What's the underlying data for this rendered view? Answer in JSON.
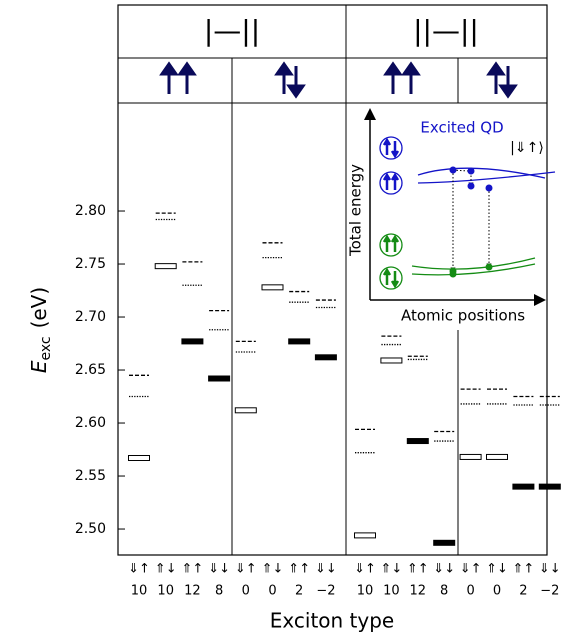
{
  "chart_data": {
    "type": "level",
    "headers": [
      "|—||",
      "||—||"
    ],
    "ylabel": {
      "main": "E",
      "sub": "exc",
      "unit": "(eV)"
    },
    "xlabel": "Exciton type",
    "categories": [
      "⇓↑",
      "⇑↓",
      "⇑↑",
      "⇓↓",
      "⇓↑",
      "⇑↓",
      "⇑↑",
      "⇓↓",
      "⇓↑",
      "⇑↓",
      "⇑↑",
      "⇓↓",
      "⇓↑",
      "⇑↓",
      "⇑↑",
      "⇓↓"
    ],
    "categories2": [
      "10",
      "10",
      "12",
      "8",
      "0",
      "0",
      "2",
      "−2",
      "10",
      "10",
      "12",
      "8",
      "0",
      "0",
      "2",
      "−2"
    ],
    "series": [
      {
        "values": [
          2.567,
          2.748,
          2.677,
          2.642,
          2.612,
          2.728,
          2.677,
          2.662,
          2.494,
          2.659,
          2.583,
          2.487,
          2.568,
          2.568,
          2.54,
          2.54
        ],
        "filled": [
          false,
          false,
          true,
          true,
          false,
          false,
          true,
          true,
          false,
          false,
          true,
          true,
          false,
          false,
          true,
          true
        ]
      },
      {
        "values": [
          2.645,
          2.798,
          2.752,
          2.706,
          2.677,
          2.77,
          2.724,
          2.716,
          2.594,
          2.682,
          2.663,
          2.592,
          2.632,
          2.632,
          2.625,
          2.625
        ],
        "line": "dashed"
      },
      {
        "values": [
          2.625,
          2.792,
          2.73,
          2.688,
          2.667,
          2.756,
          2.714,
          2.709,
          2.572,
          2.674,
          2.66,
          2.583,
          2.618,
          2.618,
          2.617,
          2.617
        ],
        "line": "dotted"
      }
    ],
    "ylim": [
      2.4755,
      2.9019
    ],
    "yticks": [
      {
        "value": 2.5,
        "label": "2.50"
      },
      2.55,
      {
        "value": 2.6,
        "label": "2.60"
      },
      2.65,
      {
        "value": 2.7,
        "label": "2.70"
      },
      2.75,
      {
        "value": 2.8,
        "label": "2.80"
      }
    ],
    "inset": {
      "title": "Excited QD",
      "state": "|⇓↑⟩",
      "ylabel": "Total energy",
      "xlabel": "Atomic positions"
    }
  }
}
